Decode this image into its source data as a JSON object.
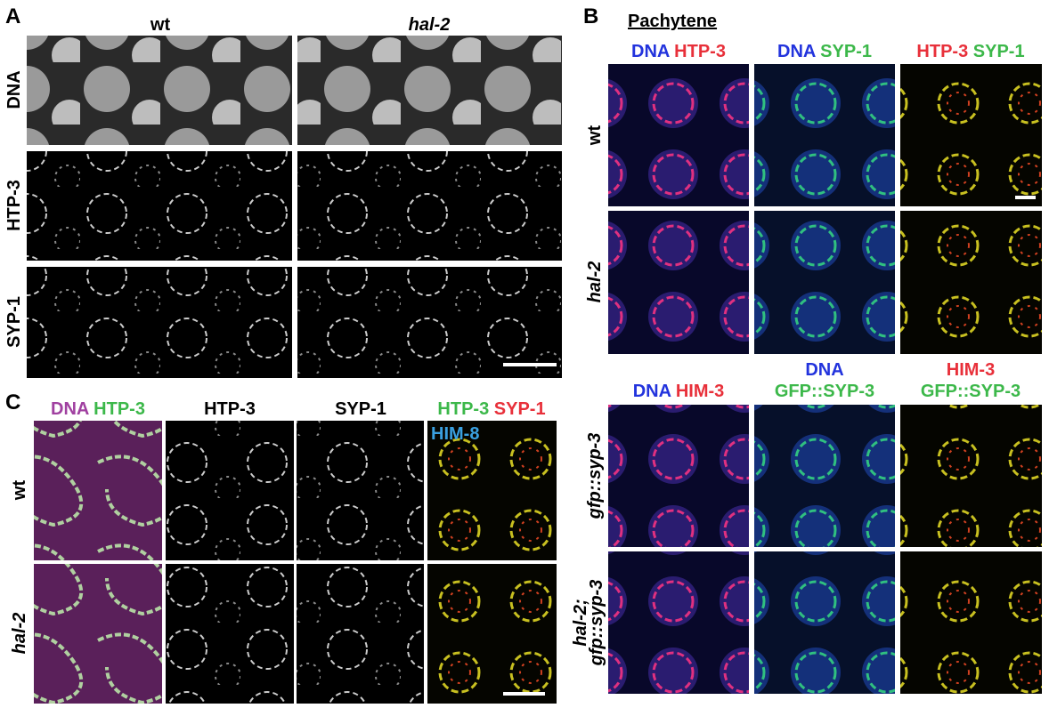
{
  "panel_a": {
    "label": "A",
    "columns": [
      "wt",
      "hal-2"
    ],
    "rows": [
      "DNA",
      "HTP-3",
      "SYP-1"
    ]
  },
  "panel_b": {
    "label": "B",
    "title": "Pachytene",
    "top_headers": [
      [
        "DNA",
        "HTP-3"
      ],
      [
        "DNA",
        "SYP-1"
      ],
      [
        "HTP-3",
        "SYP-1"
      ]
    ],
    "top_rows": [
      "wt",
      "hal-2"
    ],
    "bottom_headers": [
      [
        "DNA",
        "HIM-3"
      ],
      [
        "DNA",
        "GFP::SYP-3"
      ],
      [
        "HIM-3",
        "GFP::SYP-3"
      ]
    ],
    "bottom_rows": [
      "gfp::syp-3",
      [
        "hal-2;",
        "gfp::syp-3"
      ]
    ]
  },
  "panel_c": {
    "label": "C",
    "headers": [
      [
        "DNA",
        "HTP-3"
      ],
      [
        "HTP-3"
      ],
      [
        "SYP-1"
      ],
      [
        "HTP-3",
        "SYP-1",
        "HIM-8"
      ]
    ],
    "rows": [
      "wt",
      "hal-2"
    ]
  }
}
